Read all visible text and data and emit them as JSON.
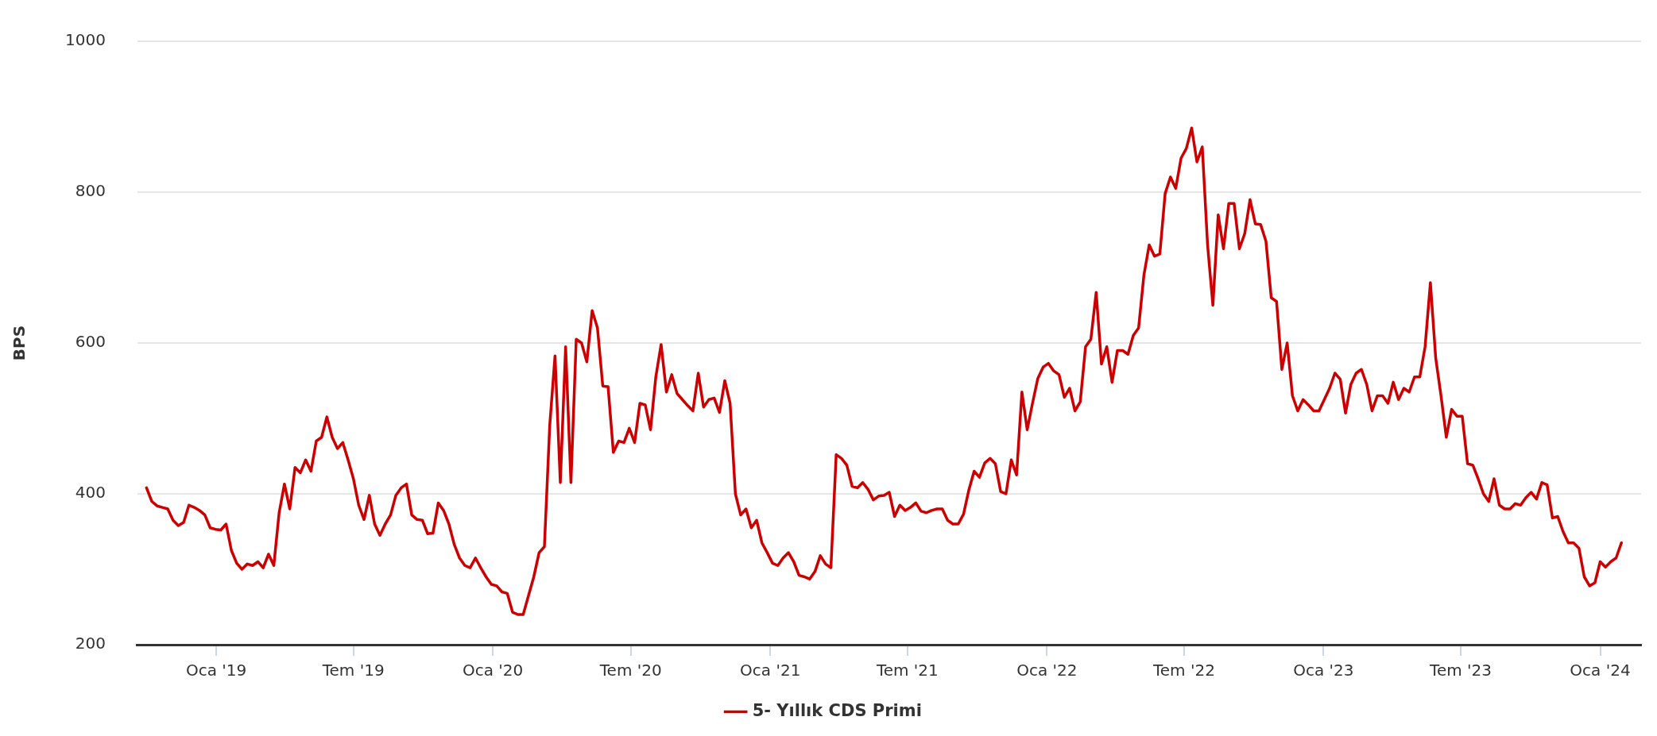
{
  "chart_data": {
    "type": "line",
    "ylabel": "BPS",
    "ylim": [
      200,
      1000
    ],
    "yticks": [
      200,
      400,
      600,
      800,
      1000
    ],
    "xlim": [
      "2018-09-19",
      "2024-02-24"
    ],
    "xticks": [
      {
        "value": "2019-01-01",
        "label": "Oca '19"
      },
      {
        "value": "2019-07-01",
        "label": "Tem '19"
      },
      {
        "value": "2020-01-01",
        "label": "Oca '20"
      },
      {
        "value": "2020-07-01",
        "label": "Tem '20"
      },
      {
        "value": "2021-01-01",
        "label": "Oca '21"
      },
      {
        "value": "2021-07-01",
        "label": "Tem '21"
      },
      {
        "value": "2022-01-01",
        "label": "Oca '22"
      },
      {
        "value": "2022-07-01",
        "label": "Tem '22"
      },
      {
        "value": "2023-01-01",
        "label": "Oca '23"
      },
      {
        "value": "2023-07-01",
        "label": "Tem '23"
      },
      {
        "value": "2024-01-01",
        "label": "Oca '24"
      }
    ],
    "grid": "y",
    "legend": "bottom",
    "marker": "none",
    "line_style": "solid",
    "x": [
      "2018-10-01",
      "2018-10-08",
      "2018-10-15",
      "2018-10-22",
      "2018-10-29",
      "2018-11-05",
      "2018-11-12",
      "2018-11-19",
      "2018-11-26",
      "2018-12-03",
      "2018-12-10",
      "2018-12-17",
      "2018-12-24",
      "2018-12-31",
      "2019-01-07",
      "2019-01-14",
      "2019-01-21",
      "2019-01-28",
      "2019-02-04",
      "2019-02-11",
      "2019-02-18",
      "2019-02-25",
      "2019-03-04",
      "2019-03-11",
      "2019-03-18",
      "2019-03-25",
      "2019-04-01",
      "2019-04-08",
      "2019-04-15",
      "2019-04-22",
      "2019-04-29",
      "2019-05-06",
      "2019-05-13",
      "2019-05-20",
      "2019-05-27",
      "2019-06-03",
      "2019-06-10",
      "2019-06-17",
      "2019-06-24",
      "2019-07-01",
      "2019-07-08",
      "2019-07-15",
      "2019-07-22",
      "2019-07-29",
      "2019-08-05",
      "2019-08-12",
      "2019-08-19",
      "2019-08-26",
      "2019-09-02",
      "2019-09-09",
      "2019-09-16",
      "2019-09-23",
      "2019-09-30",
      "2019-10-07",
      "2019-10-14",
      "2019-10-21",
      "2019-10-28",
      "2019-11-04",
      "2019-11-11",
      "2019-11-18",
      "2019-11-25",
      "2019-12-02",
      "2019-12-09",
      "2019-12-16",
      "2019-12-23",
      "2019-12-30",
      "2020-01-06",
      "2020-01-13",
      "2020-01-20",
      "2020-01-27",
      "2020-02-03",
      "2020-02-10",
      "2020-02-17",
      "2020-02-24",
      "2020-03-02",
      "2020-03-09",
      "2020-03-16",
      "2020-03-23",
      "2020-03-30",
      "2020-04-06",
      "2020-04-13",
      "2020-04-20",
      "2020-04-27",
      "2020-05-04",
      "2020-05-11",
      "2020-05-18",
      "2020-05-25",
      "2020-06-01",
      "2020-06-08",
      "2020-06-15",
      "2020-06-22",
      "2020-06-29",
      "2020-07-06",
      "2020-07-13",
      "2020-07-20",
      "2020-07-27",
      "2020-08-03",
      "2020-08-10",
      "2020-08-17",
      "2020-08-24",
      "2020-08-31",
      "2020-09-07",
      "2020-09-14",
      "2020-09-21",
      "2020-09-28",
      "2020-10-05",
      "2020-10-12",
      "2020-10-19",
      "2020-10-26",
      "2020-11-02",
      "2020-11-09",
      "2020-11-16",
      "2020-11-23",
      "2020-11-30",
      "2020-12-07",
      "2020-12-14",
      "2020-12-21",
      "2020-12-28",
      "2021-01-04",
      "2021-01-11",
      "2021-01-18",
      "2021-01-25",
      "2021-02-01",
      "2021-02-08",
      "2021-02-15",
      "2021-02-22",
      "2021-03-01",
      "2021-03-08",
      "2021-03-15",
      "2021-03-22",
      "2021-03-29",
      "2021-04-05",
      "2021-04-12",
      "2021-04-19",
      "2021-04-26",
      "2021-05-03",
      "2021-05-10",
      "2021-05-17",
      "2021-05-24",
      "2021-05-31",
      "2021-06-07",
      "2021-06-14",
      "2021-06-21",
      "2021-06-28",
      "2021-07-05",
      "2021-07-12",
      "2021-07-19",
      "2021-07-26",
      "2021-08-02",
      "2021-08-09",
      "2021-08-16",
      "2021-08-23",
      "2021-08-30",
      "2021-09-06",
      "2021-09-13",
      "2021-09-20",
      "2021-09-27",
      "2021-10-04",
      "2021-10-11",
      "2021-10-18",
      "2021-10-25",
      "2021-11-01",
      "2021-11-08",
      "2021-11-15",
      "2021-11-22",
      "2021-11-29",
      "2021-12-06",
      "2021-12-13",
      "2021-12-20",
      "2021-12-27",
      "2022-01-03",
      "2022-01-10",
      "2022-01-17",
      "2022-01-24",
      "2022-01-31",
      "2022-02-07",
      "2022-02-14",
      "2022-02-21",
      "2022-02-28",
      "2022-03-07",
      "2022-03-14",
      "2022-03-21",
      "2022-03-28",
      "2022-04-04",
      "2022-04-11",
      "2022-04-18",
      "2022-04-25",
      "2022-05-02",
      "2022-05-09",
      "2022-05-16",
      "2022-05-23",
      "2022-05-30",
      "2022-06-06",
      "2022-06-13",
      "2022-06-20",
      "2022-06-27",
      "2022-07-04",
      "2022-07-11",
      "2022-07-18",
      "2022-07-25",
      "2022-08-01",
      "2022-08-08",
      "2022-08-15",
      "2022-08-22",
      "2022-08-29",
      "2022-09-05",
      "2022-09-12",
      "2022-09-19",
      "2022-09-26",
      "2022-10-03",
      "2022-10-10",
      "2022-10-17",
      "2022-10-24",
      "2022-10-31",
      "2022-11-07",
      "2022-11-14",
      "2022-11-21",
      "2022-11-28",
      "2022-12-05",
      "2022-12-12",
      "2022-12-19",
      "2022-12-26",
      "2023-01-02",
      "2023-01-09",
      "2023-01-16",
      "2023-01-23",
      "2023-01-30",
      "2023-02-06",
      "2023-02-13",
      "2023-02-20",
      "2023-02-27",
      "2023-03-06",
      "2023-03-13",
      "2023-03-20",
      "2023-03-27",
      "2023-04-03",
      "2023-04-10",
      "2023-04-17",
      "2023-04-24",
      "2023-05-01",
      "2023-05-08",
      "2023-05-15",
      "2023-05-22",
      "2023-05-29",
      "2023-06-05",
      "2023-06-12",
      "2023-06-19",
      "2023-06-26",
      "2023-07-03",
      "2023-07-10",
      "2023-07-17",
      "2023-07-24",
      "2023-07-31",
      "2023-08-07",
      "2023-08-14",
      "2023-08-21",
      "2023-08-28",
      "2023-09-04",
      "2023-09-11",
      "2023-09-18",
      "2023-09-25",
      "2023-10-02",
      "2023-10-09",
      "2023-10-16",
      "2023-10-23",
      "2023-10-30",
      "2023-11-06",
      "2023-11-13",
      "2023-11-20",
      "2023-11-27",
      "2023-12-04",
      "2023-12-11",
      "2023-12-18",
      "2023-12-25",
      "2024-01-01",
      "2024-01-08",
      "2024-01-15",
      "2024-01-22",
      "2024-01-29"
    ],
    "series": [
      {
        "name": "5- Yıllık CDS Primi",
        "color": "#cc0000",
        "values": [
          408,
          390,
          384,
          382,
          380,
          365,
          358,
          362,
          385,
          382,
          378,
          372,
          355,
          353,
          352,
          360,
          325,
          308,
          300,
          307,
          305,
          310,
          302,
          320,
          305,
          375,
          413,
          380,
          435,
          428,
          445,
          430,
          470,
          475,
          502,
          475,
          460,
          468,
          445,
          420,
          385,
          366,
          398,
          360,
          345,
          360,
          372,
          398,
          408,
          413,
          372,
          366,
          365,
          347,
          348,
          388,
          378,
          360,
          333,
          315,
          305,
          302,
          315,
          302,
          290,
          280,
          278,
          270,
          268,
          243,
          240,
          240,
          265,
          290,
          322,
          330,
          490,
          583,
          415,
          595,
          415,
          605,
          600,
          575,
          643,
          620,
          543,
          542,
          455,
          470,
          468,
          487,
          468,
          520,
          518,
          485,
          555,
          598,
          535,
          558,
          533,
          525,
          517,
          510,
          560,
          515,
          525,
          527,
          508,
          550,
          520,
          400,
          372,
          380,
          355,
          365,
          335,
          322,
          308,
          305,
          315,
          322,
          310,
          292,
          290,
          287,
          297,
          318,
          307,
          302,
          452,
          447,
          438,
          410,
          408,
          415,
          406,
          392,
          397,
          398,
          402,
          370,
          385,
          378,
          382,
          388,
          377,
          375,
          378,
          380,
          380,
          365,
          360,
          360,
          373,
          405,
          430,
          422,
          441,
          447,
          440,
          403,
          400,
          445,
          425,
          535,
          485,
          520,
          553,
          568,
          573,
          563,
          558,
          528,
          540,
          510,
          522,
          595,
          605,
          667,
          572,
          595,
          548,
          590,
          590,
          585,
          610,
          620,
          690,
          730,
          715,
          718,
          798,
          820,
          805,
          845,
          858,
          885,
          840,
          860,
          730,
          650,
          770,
          725,
          785,
          785,
          725,
          745,
          790,
          758,
          757,
          735,
          660,
          655,
          565,
          600,
          530,
          510,
          525,
          518,
          510,
          510,
          525,
          540,
          560,
          552,
          507,
          545,
          560,
          565,
          545,
          510,
          530,
          530,
          520,
          548,
          525,
          540,
          535,
          555,
          555,
          595,
          680,
          580,
          530,
          475,
          512,
          503,
          503,
          440,
          438,
          420,
          400,
          390,
          420,
          385,
          380,
          380,
          387,
          385,
          395,
          402,
          393,
          415,
          412,
          368,
          370,
          350,
          335,
          335,
          328,
          290,
          278,
          282,
          310,
          303,
          310,
          315,
          335
        ]
      }
    ]
  }
}
